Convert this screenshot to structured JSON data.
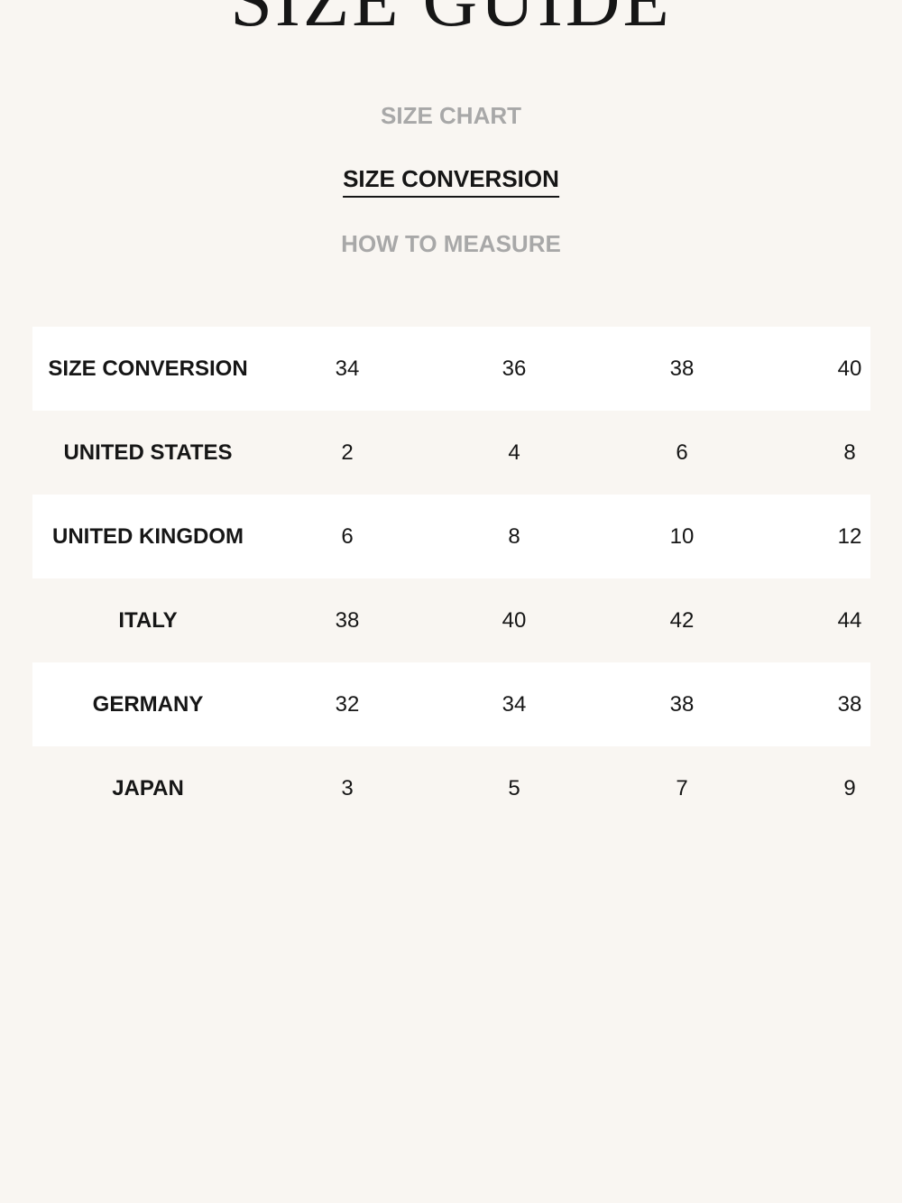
{
  "header": {
    "title": "SIZE GUIDE"
  },
  "tabs": [
    {
      "label": "SIZE CHART",
      "active": false
    },
    {
      "label": "SIZE CONVERSION",
      "active": true
    },
    {
      "label": "HOW TO MEASURE",
      "active": false
    }
  ],
  "table": {
    "rows": [
      [
        "SIZE CONVERSION",
        "34",
        "36",
        "38",
        "40"
      ],
      [
        "UNITED STATES",
        "2",
        "4",
        "6",
        "8"
      ],
      [
        "UNITED KINGDOM",
        "6",
        "8",
        "10",
        "12"
      ],
      [
        "ITALY",
        "38",
        "40",
        "42",
        "44"
      ],
      [
        "GERMANY",
        "32",
        "34",
        "38",
        "38"
      ],
      [
        "JAPAN",
        "3",
        "5",
        "7",
        "9"
      ]
    ]
  }
}
